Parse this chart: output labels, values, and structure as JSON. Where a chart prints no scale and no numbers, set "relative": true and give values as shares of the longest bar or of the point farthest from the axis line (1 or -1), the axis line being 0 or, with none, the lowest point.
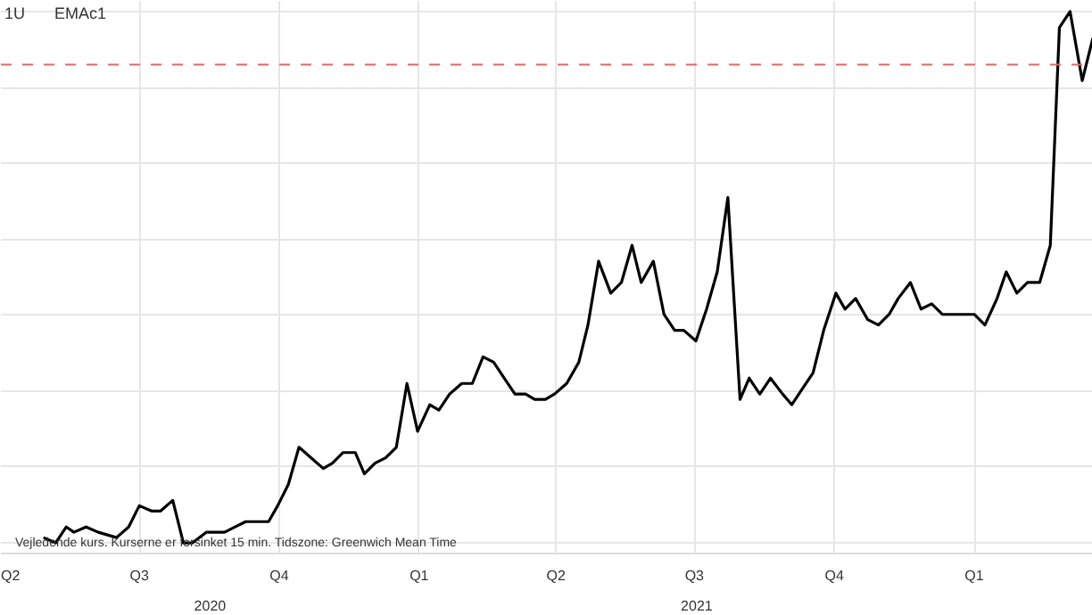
{
  "chart_data": {
    "type": "line",
    "title": "1U",
    "subtitle": "EMAc1",
    "relative": true,
    "x": [
      "2020-04-29",
      "2020-05-07",
      "2020-05-14",
      "2020-05-19",
      "2020-05-27",
      "2020-06-04",
      "2020-06-16",
      "2020-06-24",
      "2020-07-01",
      "2020-07-09",
      "2020-07-15",
      "2020-07-23",
      "2020-07-30",
      "2020-08-05",
      "2020-08-14",
      "2020-08-20",
      "2020-08-26",
      "2020-09-02",
      "2020-09-09",
      "2020-09-17",
      "2020-09-24",
      "2020-09-30",
      "2020-10-07",
      "2020-10-14",
      "2020-10-22",
      "2020-10-30",
      "2020-11-05",
      "2020-11-12",
      "2020-11-20",
      "2020-11-26",
      "2020-12-03",
      "2020-12-10",
      "2020-12-17",
      "2020-12-24",
      "2020-12-31",
      "2021-01-08",
      "2021-01-14",
      "2021-01-21",
      "2021-01-29",
      "2021-02-05",
      "2021-02-12",
      "2021-02-19",
      "2021-02-26",
      "2021-03-05",
      "2021-03-12",
      "2021-03-18",
      "2021-03-25",
      "2021-03-31",
      "2021-04-08",
      "2021-04-16",
      "2021-04-22",
      "2021-04-29",
      "2021-05-07",
      "2021-05-14",
      "2021-05-21",
      "2021-05-27",
      "2021-06-04",
      "2021-06-11",
      "2021-06-18",
      "2021-06-24",
      "2021-07-02",
      "2021-07-09",
      "2021-07-16",
      "2021-07-23",
      "2021-07-31",
      "2021-08-06",
      "2021-08-13",
      "2021-08-20",
      "2021-08-28",
      "2021-09-03",
      "2021-09-10",
      "2021-09-17",
      "2021-09-24",
      "2021-10-02",
      "2021-10-08",
      "2021-10-15",
      "2021-10-23",
      "2021-10-30",
      "2021-11-06",
      "2021-11-12",
      "2021-11-20",
      "2021-11-27",
      "2021-12-04",
      "2021-12-11",
      "2021-12-18",
      "2021-12-25",
      "2022-01-01",
      "2022-01-08",
      "2022-01-16",
      "2022-01-22",
      "2022-01-29",
      "2022-02-05",
      "2022-02-13",
      "2022-02-20",
      "2022-02-26",
      "2022-03-05",
      "2022-03-13",
      "2022-03-20"
    ],
    "series": [
      {
        "color": "#000000",
        "values": [
          0.01,
          0,
          0.03,
          0.02,
          0.03,
          0.02,
          0.01,
          0.03,
          0.07,
          0.06,
          0.06,
          0.08,
          0.0,
          0.0,
          0.02,
          0.02,
          0.02,
          0.03,
          0.04,
          0.04,
          0.04,
          0.07,
          0.11,
          0.18,
          0.16,
          0.14,
          0.15,
          0.17,
          0.17,
          0.13,
          0.15,
          0.16,
          0.18,
          0.3,
          0.21,
          0.26,
          0.25,
          0.28,
          0.3,
          0.3,
          0.35,
          0.34,
          0.31,
          0.28,
          0.28,
          0.27,
          0.27,
          0.28,
          0.3,
          0.34,
          0.41,
          0.53,
          0.47,
          0.49,
          0.56,
          0.49,
          0.53,
          0.43,
          0.4,
          0.4,
          0.38,
          0.44,
          0.51,
          0.65,
          0.27,
          0.31,
          0.28,
          0.31,
          0.28,
          0.26,
          0.29,
          0.32,
          0.4,
          0.47,
          0.44,
          0.46,
          0.42,
          0.41,
          0.43,
          0.46,
          0.49,
          0.44,
          0.45,
          0.43,
          0.43,
          0.43,
          0.43,
          0.41,
          0.46,
          0.51,
          0.47,
          0.49,
          0.49,
          0.56,
          0.97,
          1,
          0.87,
          0.95
        ]
      }
    ],
    "xlim": [
      "2020-04-01",
      "2022-03-20"
    ],
    "xticks": [
      {
        "value": "2020-04-01",
        "label": "Q2"
      },
      {
        "value": "2020-07-01",
        "label": "Q3"
      },
      {
        "value": "2020-10-01",
        "label": "Q4"
      },
      {
        "value": "2021-01-01",
        "label": "Q1"
      },
      {
        "value": "2021-04-01",
        "label": "Q2"
      },
      {
        "value": "2021-07-01",
        "label": "Q3"
      },
      {
        "value": "2021-10-01",
        "label": "Q4"
      },
      {
        "value": "2022-01-01",
        "label": "Q1"
      }
    ],
    "ref_lines": [
      {
        "axis": "y",
        "value": 0.9,
        "color": "#e06666",
        "line_style": "dashed"
      }
    ],
    "annotations": [
      "2020",
      "2021",
      "Vejledende kurs. Kurserne er forsinket 15 min.    Tidszone: Greenwich Mean Time"
    ],
    "grid": true,
    "marker": "none",
    "line_style": "solid"
  }
}
